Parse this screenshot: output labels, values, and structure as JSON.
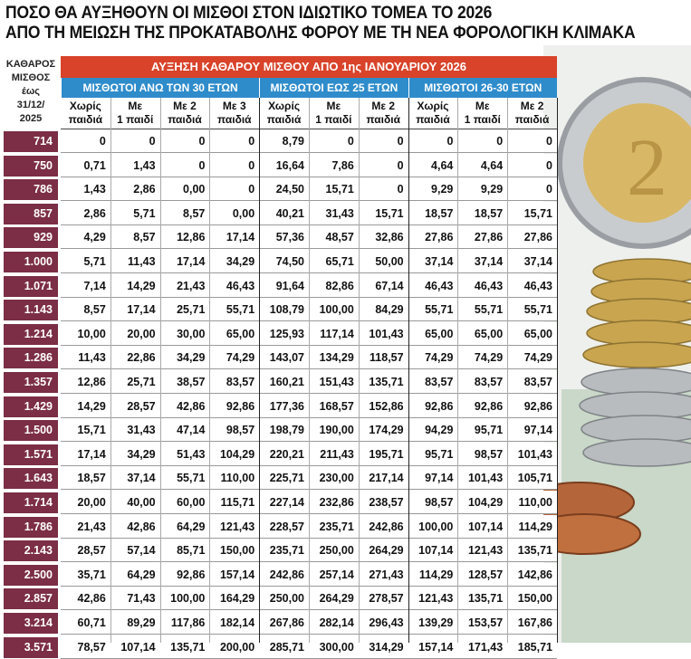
{
  "header": {
    "title_lines": [
      "ΠΟΣΟ ΘΑ ΑΥΞΗΘΟΥΝ ΟΙ ΜΙΣΘΟΙ ΣΤΟΝ ΙΔΙΩΤΙΚΟ ΤΟΜΕΑ ΤΟ 2026",
      "ΑΠΟ ΤΗ ΜΕΙΩΣΗ ΤΗΣ ΠΡΟΚΑΤΑΒΟΛΗΣ ΦΟΡΟΥ ΜΕ ΤΗ ΝΕΑ ΦΟΡΟΛΟΓΙΚΗ ΚΛΙΜΑΚΑ"
    ]
  },
  "table": {
    "left_header": [
      "ΚΑΘΑΡΟΣ",
      "ΜΙΣΘΟΣ",
      "έως",
      "31/12/",
      "2025"
    ],
    "main_header": "ΑΥΞΗΣΗ ΚΑΘΑΡΟΥ ΜΙΣΘΟΥ ΑΠΟ 1ης ΙΑΝΟΥΑΡΙΟΥ 2026",
    "groups": [
      {
        "title": "ΜΙΣΘΩΤΟΙ ΑΝΩ ΤΩΝ 30 ΕΤΩΝ",
        "columns": [
          [
            "Χωρίς",
            "παιδιά"
          ],
          [
            "Με",
            "1 παιδί"
          ],
          [
            "Με 2",
            "παιδιά"
          ],
          [
            "Με 3",
            "παιδιά"
          ]
        ]
      },
      {
        "title": "ΜΙΣΘΩΤΟΙ ΕΩΣ 25 ΕΤΩΝ",
        "columns": [
          [
            "Χωρίς",
            "παιδιά"
          ],
          [
            "Με",
            "1 παιδί"
          ],
          [
            "Με 2",
            "παιδιά"
          ]
        ]
      },
      {
        "title": "ΜΙΣΘΩΤΟΙ 26-30 ΕΤΩΝ",
        "columns": [
          [
            "Χωρίς",
            "παιδιά"
          ],
          [
            "Με",
            "1 παιδί"
          ],
          [
            "Με 2",
            "παιδιά"
          ]
        ]
      }
    ],
    "rows": [
      [
        "714",
        "0",
        "0",
        "0",
        "0",
        "8,79",
        "0",
        "0",
        "0",
        "0",
        "0"
      ],
      [
        "750",
        "0,71",
        "1,43",
        "0",
        "0",
        "16,64",
        "7,86",
        "0",
        "4,64",
        "4,64",
        "0"
      ],
      [
        "786",
        "1,43",
        "2,86",
        "0,00",
        "0",
        "24,50",
        "15,71",
        "0",
        "9,29",
        "9,29",
        "0"
      ],
      [
        "857",
        "2,86",
        "5,71",
        "8,57",
        "0,00",
        "40,21",
        "31,43",
        "15,71",
        "18,57",
        "18,57",
        "15,71"
      ],
      [
        "929",
        "4,29",
        "8,57",
        "12,86",
        "17,14",
        "57,36",
        "48,57",
        "32,86",
        "27,86",
        "27,86",
        "27,86"
      ],
      [
        "1.000",
        "5,71",
        "11,43",
        "17,14",
        "34,29",
        "74,50",
        "65,71",
        "50,00",
        "37,14",
        "37,14",
        "37,14"
      ],
      [
        "1.071",
        "7,14",
        "14,29",
        "21,43",
        "46,43",
        "91,64",
        "82,86",
        "67,14",
        "46,43",
        "46,43",
        "46,43"
      ],
      [
        "1.143",
        "8,57",
        "17,14",
        "25,71",
        "55,71",
        "108,79",
        "100,00",
        "84,29",
        "55,71",
        "55,71",
        "55,71"
      ],
      [
        "1.214",
        "10,00",
        "20,00",
        "30,00",
        "65,00",
        "125,93",
        "117,14",
        "101,43",
        "65,00",
        "65,00",
        "65,00"
      ],
      [
        "1.286",
        "11,43",
        "22,86",
        "34,29",
        "74,29",
        "143,07",
        "134,29",
        "118,57",
        "74,29",
        "74,29",
        "74,29"
      ],
      [
        "1.357",
        "12,86",
        "25,71",
        "38,57",
        "83,57",
        "160,21",
        "151,43",
        "135,71",
        "83,57",
        "83,57",
        "83,57"
      ],
      [
        "1.429",
        "14,29",
        "28,57",
        "42,86",
        "92,86",
        "177,36",
        "168,57",
        "152,86",
        "92,86",
        "92,86",
        "92,86"
      ],
      [
        "1.500",
        "15,71",
        "31,43",
        "47,14",
        "98,57",
        "198,79",
        "190,00",
        "174,29",
        "94,29",
        "95,71",
        "97,14"
      ],
      [
        "1.571",
        "17,14",
        "34,29",
        "51,43",
        "104,29",
        "220,21",
        "211,43",
        "195,71",
        "95,71",
        "98,57",
        "101,43"
      ],
      [
        "1.643",
        "18,57",
        "37,14",
        "55,71",
        "110,00",
        "225,71",
        "230,00",
        "217,14",
        "97,14",
        "101,43",
        "105,71"
      ],
      [
        "1.714",
        "20,00",
        "40,00",
        "60,00",
        "115,71",
        "227,14",
        "232,86",
        "238,57",
        "98,57",
        "104,29",
        "110,00"
      ],
      [
        "1.786",
        "21,43",
        "42,86",
        "64,29",
        "121,43",
        "228,57",
        "235,71",
        "242,86",
        "100,00",
        "107,14",
        "114,29"
      ],
      [
        "2.143",
        "28,57",
        "57,14",
        "85,71",
        "150,00",
        "235,71",
        "250,00",
        "264,29",
        "107,14",
        "121,43",
        "135,71"
      ],
      [
        "2.500",
        "35,71",
        "64,29",
        "92,86",
        "157,14",
        "242,86",
        "257,14",
        "271,43",
        "114,29",
        "128,57",
        "142,86"
      ],
      [
        "2.857",
        "42,86",
        "71,43",
        "100,00",
        "164,29",
        "250,00",
        "264,29",
        "278,57",
        "121,43",
        "135,71",
        "150,00"
      ],
      [
        "3.214",
        "60,71",
        "89,29",
        "117,86",
        "182,14",
        "267,86",
        "282,14",
        "296,43",
        "139,29",
        "153,57",
        "167,86"
      ],
      [
        "3.571",
        "78,57",
        "107,14",
        "135,71",
        "200,00",
        "285,71",
        "300,00",
        "314,29",
        "157,14",
        "171,43",
        "185,71"
      ]
    ]
  }
}
